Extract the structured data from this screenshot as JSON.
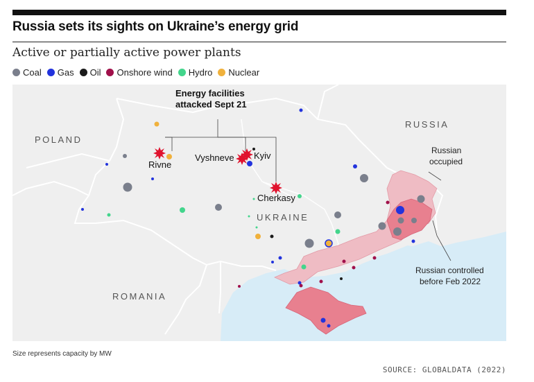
{
  "title": "Russia sets its sights on Ukraine’s energy grid",
  "subtitle": "Active or partially active power plants",
  "legend": [
    {
      "label": "Coal",
      "color": "#7a7f8c"
    },
    {
      "label": "Gas",
      "color": "#2233dd"
    },
    {
      "label": "Oil",
      "color": "#1b1b1b"
    },
    {
      "label": "Onshore wind",
      "color": "#a0104a"
    },
    {
      "label": "Hydro",
      "color": "#43d58c"
    },
    {
      "label": "Nuclear",
      "color": "#f0b13c"
    }
  ],
  "annotation": {
    "line1": "Energy facilities",
    "line2": "attacked Sept 21"
  },
  "countries": {
    "russia": "RUSSIA",
    "poland": "POLAND",
    "ukraine": "UKRAINE",
    "romania": "ROMANIA"
  },
  "attack_sites": {
    "rivne": "Rivne",
    "vyshneve": "Vyshneve",
    "kyiv": "Kyiv",
    "cherkasy": "Cherkasy"
  },
  "region_labels": {
    "occupied_1": "Russian",
    "occupied_2": "occupied",
    "controlled_1": "Russian controlled",
    "controlled_2": "before Feb 2022"
  },
  "size_note": "Size represents capacity by MW",
  "source": "SOURCE: GLOBALDATA (2022)",
  "colors": {
    "land": "#efefef",
    "sea": "#d7ecf7",
    "border": "#ffffff",
    "occupied": "#efbcc4",
    "controlled": "#e8808f",
    "attack": "#e0122d"
  }
}
